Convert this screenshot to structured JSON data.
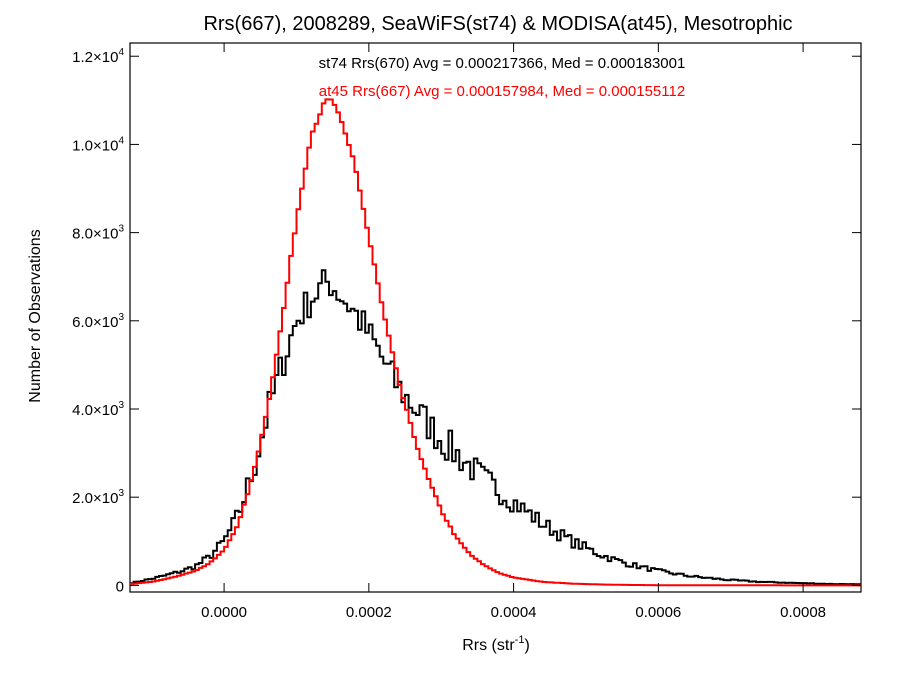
{
  "chart_data": {
    "type": "line",
    "title": "Rrs(667), 2008289, SeaWiFS(st74) & MODISA(at45), Mesotrophic",
    "xlabel": {
      "main": "Rrs (str",
      "sup": "-1",
      "tail": ")"
    },
    "ylabel": "Number of Observations",
    "xlim": [
      -0.00013,
      0.00088
    ],
    "ylim": [
      -150,
      12300
    ],
    "x_ticks": [
      {
        "value": 0.0,
        "label": "0.0000"
      },
      {
        "value": 0.0002,
        "label": "0.0002"
      },
      {
        "value": 0.0004,
        "label": "0.0004"
      },
      {
        "value": 0.0006,
        "label": "0.0006"
      },
      {
        "value": 0.0008,
        "label": "0.0008"
      }
    ],
    "y_ticks": [
      {
        "value": 0,
        "main": "0",
        "sup": ""
      },
      {
        "value": 2000,
        "main": "2.0×10",
        "sup": "3"
      },
      {
        "value": 4000,
        "main": "4.0×10",
        "sup": "3"
      },
      {
        "value": 6000,
        "main": "6.0×10",
        "sup": "3"
      },
      {
        "value": 8000,
        "main": "8.0×10",
        "sup": "3"
      },
      {
        "value": 10000,
        "main": "1.0×10",
        "sup": "4"
      },
      {
        "value": 12000,
        "main": "1.2×10",
        "sup": "4"
      }
    ],
    "annotations": [
      {
        "text": "st74 Rrs(670) Avg = 0.000217366, Med = 0.000183001",
        "color": "#000000"
      },
      {
        "text": "at45 Rrs(667) Avg = 0.000157984, Med = 0.000155112",
        "color": "#ff0000"
      }
    ],
    "bin_width": 5e-06,
    "grid": false,
    "series": [
      {
        "name": "st74",
        "color": "#000000",
        "kind": "noisy_step",
        "x": [
          -0.00013,
          -0.0001,
          -8e-05,
          -6e-05,
          -4e-05,
          -2e-05,
          0.0,
          2e-05,
          4e-05,
          6e-05,
          8e-05,
          0.0001,
          0.00012,
          0.00014,
          0.000145,
          0.00016,
          0.00018,
          0.0002,
          0.00022,
          0.00024,
          0.00026,
          0.00028,
          0.0003,
          0.00032,
          0.00034,
          0.00036,
          0.00038,
          0.0004,
          0.00042,
          0.00044,
          0.00046,
          0.00048,
          0.0005,
          0.00052,
          0.00054,
          0.00056,
          0.00058,
          0.0006,
          0.00062,
          0.00064,
          0.00066,
          0.00068,
          0.0007,
          0.00072,
          0.00074,
          0.00076,
          0.00078,
          0.0008,
          0.00082,
          0.00084,
          0.00086,
          0.00088
        ],
        "y": [
          50,
          150,
          230,
          320,
          430,
          650,
          1000,
          1600,
          2600,
          3900,
          5000,
          6000,
          6500,
          6850,
          6900,
          6600,
          6200,
          5700,
          5100,
          4500,
          4100,
          3700,
          3300,
          3000,
          2700,
          2400,
          2150,
          1900,
          1650,
          1400,
          1200,
          1000,
          850,
          700,
          580,
          480,
          400,
          330,
          270,
          220,
          180,
          150,
          120,
          100,
          80,
          70,
          60,
          50,
          40,
          30,
          30,
          20
        ],
        "jitter": 400
      },
      {
        "name": "at45",
        "color": "#ff0000",
        "kind": "step",
        "x": [
          -0.00013,
          -0.0001,
          -8e-05,
          -6e-05,
          -4e-05,
          -2e-05,
          0.0,
          2e-05,
          4e-05,
          6e-05,
          8e-05,
          0.0001,
          0.00012,
          0.00014,
          0.00015,
          0.00016,
          0.00018,
          0.0002,
          0.00022,
          0.00024,
          0.00026,
          0.00028,
          0.0003,
          0.00032,
          0.00034,
          0.00036,
          0.00038,
          0.0004,
          0.00044,
          0.00048,
          0.00052,
          0.00056,
          0.0006,
          0.00064,
          0.0007,
          0.00076,
          0.00082,
          0.00088
        ],
        "y": [
          30,
          80,
          150,
          230,
          330,
          500,
          800,
          1400,
          2500,
          4000,
          6000,
          8300,
          10200,
          11000,
          11000,
          10600,
          9600,
          7900,
          6200,
          4700,
          3500,
          2500,
          1700,
          1100,
          700,
          450,
          280,
          180,
          80,
          40,
          20,
          10,
          5,
          3,
          2,
          1,
          0,
          0
        ],
        "jitter": 120
      }
    ]
  }
}
